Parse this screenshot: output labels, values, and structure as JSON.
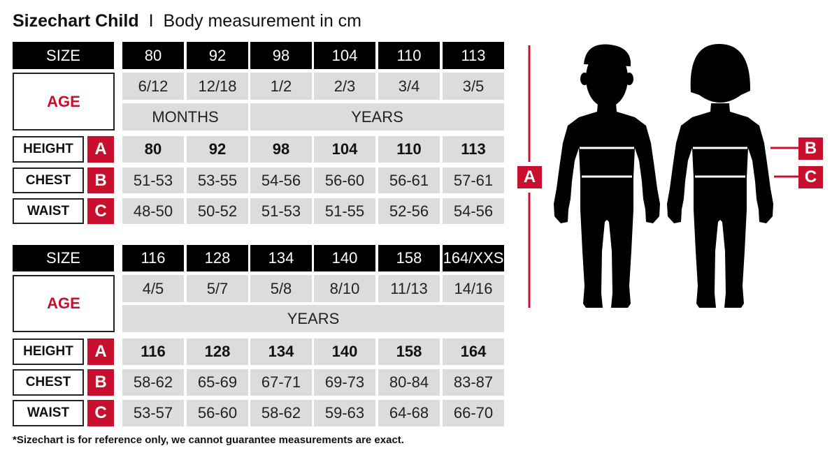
{
  "title": {
    "main": "Sizechart Child",
    "separator": "I",
    "subtitle": "Body measurement in cm"
  },
  "row_labels": {
    "size": "SIZE",
    "age": "AGE",
    "height": "HEIGHT",
    "chest": "CHEST",
    "waist": "WAIST",
    "height_letter": "A",
    "chest_letter": "B",
    "waist_letter": "C"
  },
  "tables": [
    {
      "sizes": [
        "80",
        "92",
        "98",
        "104",
        "110",
        "113"
      ],
      "ages": [
        "6/12",
        "12/18",
        "1/2",
        "2/3",
        "3/4",
        "3/5"
      ],
      "age_units": [
        {
          "label": "MONTHS",
          "span": 2
        },
        {
          "label": "YEARS",
          "span": 4
        }
      ],
      "height": [
        "80",
        "92",
        "98",
        "104",
        "110",
        "113"
      ],
      "chest": [
        "51-53",
        "53-55",
        "54-56",
        "56-60",
        "56-61",
        "57-61"
      ],
      "waist": [
        "48-50",
        "50-52",
        "51-53",
        "51-55",
        "52-56",
        "54-56"
      ]
    },
    {
      "sizes": [
        "116",
        "128",
        "134",
        "140",
        "158",
        "164/XXS"
      ],
      "ages": [
        "4/5",
        "5/7",
        "5/8",
        "8/10",
        "11/13",
        "14/16"
      ],
      "age_units": [
        {
          "label": "YEARS",
          "span": 6
        }
      ],
      "height": [
        "116",
        "128",
        "134",
        "140",
        "158",
        "164"
      ],
      "chest": [
        "58-62",
        "65-69",
        "67-71",
        "69-73",
        "80-84",
        "83-87"
      ],
      "waist": [
        "53-57",
        "56-60",
        "58-62",
        "59-63",
        "64-68",
        "66-70"
      ]
    }
  ],
  "figure": {
    "height_marker": "A",
    "chest_marker": "B",
    "waist_marker": "C"
  },
  "footnote": "*Sizechart is for reference only, we cannot guarantee measurements are exact.",
  "colors": {
    "accent": "#c8102e",
    "header": "#000000",
    "cell": "#dcdcdc"
  }
}
